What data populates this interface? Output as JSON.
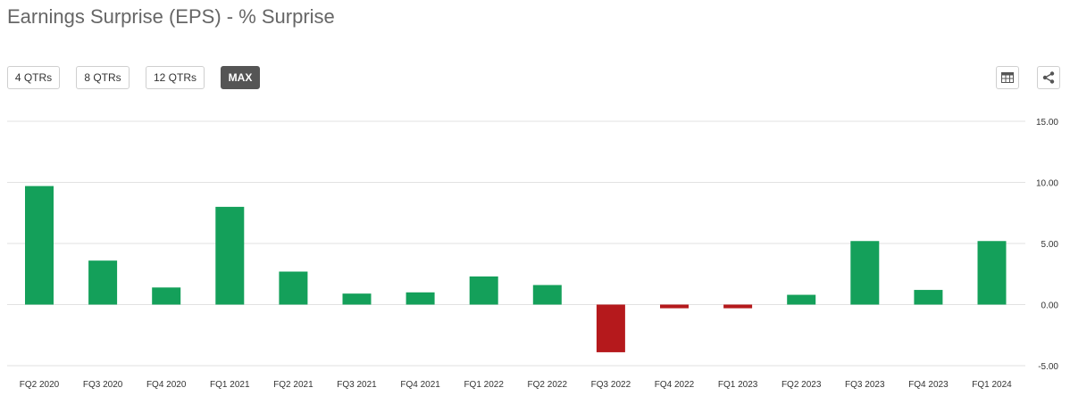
{
  "header": {
    "title": "Earnings Surprise (EPS) - % Surprise"
  },
  "range_buttons": [
    {
      "label": "4 QTRs",
      "active": false
    },
    {
      "label": "8 QTRs",
      "active": false
    },
    {
      "label": "12 QTRs",
      "active": false
    },
    {
      "label": "MAX",
      "active": true
    }
  ],
  "toolbar": {
    "table_icon": "table-icon",
    "share_icon": "share-icon"
  },
  "colors": {
    "positive": "#14a05a",
    "negative": "#b5191c",
    "grid": "#e2e2e2",
    "active_button": "#555555"
  },
  "chart_data": {
    "type": "bar",
    "title": "Earnings Surprise (EPS) - % Surprise",
    "xlabel": "",
    "ylabel": "",
    "categories": [
      "FQ2 2020",
      "FQ3 2020",
      "FQ4 2020",
      "FQ1 2021",
      "FQ2 2021",
      "FQ3 2021",
      "FQ4 2021",
      "FQ1 2022",
      "FQ2 2022",
      "FQ3 2022",
      "FQ4 2022",
      "FQ1 2023",
      "FQ2 2023",
      "FQ3 2023",
      "FQ4 2023",
      "FQ1 2024"
    ],
    "values": [
      9.7,
      3.6,
      1.4,
      8.0,
      2.7,
      0.9,
      1.0,
      2.3,
      1.6,
      -3.9,
      -0.3,
      -0.3,
      0.8,
      5.2,
      1.2,
      5.2
    ],
    "ylim": [
      -5,
      15
    ],
    "yticks": [
      "15.00",
      "10.00",
      "5.00",
      "0.00",
      "-5.00"
    ],
    "ytick_values": [
      15,
      10,
      5,
      0,
      -5
    ],
    "grid": true,
    "legend": "none"
  }
}
